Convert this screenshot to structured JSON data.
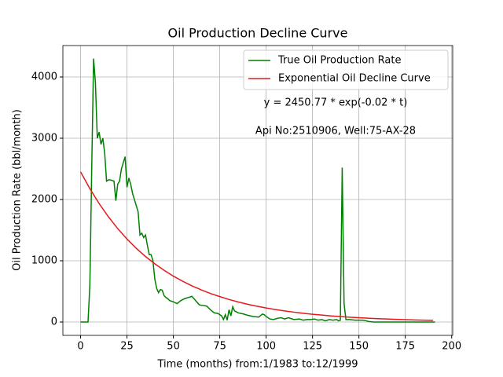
{
  "chart_data": {
    "type": "line",
    "title": "Oil Production Decline Curve",
    "x_label": "Time (months) from:1/1983 to:12/1999",
    "y_label": "Oil Production Rate (bbl/month)",
    "annotations": [
      "y = 2450.77 * exp(-0.02 * t)",
      "Api No:2510906, Well:75-AX-28"
    ],
    "xlim": [
      -9.55,
      200.55
    ],
    "xticks": [
      0,
      25,
      50,
      75,
      100,
      125,
      150,
      175,
      200
    ],
    "ylim": [
      -218,
      4513
    ],
    "yticks": [
      0,
      1000,
      2000,
      3000,
      4000
    ],
    "grid": true,
    "legend": "upper right",
    "series": [
      {
        "name": "True Oil Production Rate",
        "color": "#008000",
        "x": [
          0,
          1,
          2,
          3,
          4,
          5,
          6,
          7,
          8,
          9,
          10,
          11,
          12,
          13,
          14,
          15,
          16,
          17,
          18,
          19,
          20,
          21,
          22,
          23,
          24,
          25,
          26,
          27,
          28,
          29,
          30,
          31,
          32,
          33,
          34,
          35,
          36,
          37,
          38,
          39,
          40,
          41,
          42,
          43,
          44,
          45,
          46,
          47,
          48,
          50,
          52,
          54,
          56,
          58,
          60,
          62,
          64,
          66,
          68,
          70,
          72,
          74,
          76,
          77,
          78,
          79,
          80,
          81,
          82,
          83,
          85,
          88,
          90,
          93,
          96,
          98,
          99,
          100,
          102,
          104,
          106,
          108,
          110,
          112,
          115,
          118,
          120,
          122,
          124,
          126,
          128,
          130,
          132,
          134,
          136,
          138,
          139,
          140,
          141,
          142,
          143,
          145,
          148,
          150,
          152,
          154,
          155,
          158,
          165,
          175,
          185,
          191
        ],
        "values": [
          0,
          0,
          0,
          0,
          0,
          600,
          2500,
          4300,
          3900,
          3000,
          3100,
          2900,
          3000,
          2750,
          2300,
          2320,
          2320,
          2310,
          2300,
          1980,
          2250,
          2300,
          2500,
          2600,
          2700,
          2200,
          2350,
          2250,
          2100,
          2000,
          1900,
          1800,
          1420,
          1450,
          1380,
          1420,
          1250,
          1100,
          1100,
          1000,
          700,
          550,
          480,
          530,
          520,
          430,
          400,
          380,
          350,
          330,
          300,
          350,
          380,
          400,
          420,
          350,
          280,
          270,
          260,
          200,
          150,
          140,
          100,
          40,
          120,
          30,
          200,
          100,
          250,
          180,
          150,
          130,
          110,
          90,
          80,
          130,
          120,
          90,
          50,
          40,
          60,
          70,
          50,
          70,
          40,
          50,
          30,
          40,
          40,
          50,
          30,
          40,
          20,
          40,
          30,
          40,
          20,
          30,
          2520,
          300,
          40,
          40,
          30,
          30,
          30,
          20,
          10,
          0,
          0,
          0,
          0,
          0
        ]
      },
      {
        "name": "Exponential Oil Decline Curve",
        "color": "#e41a1c",
        "x": [
          0,
          5,
          10,
          15,
          20,
          25,
          30,
          35,
          40,
          45,
          50,
          55,
          60,
          65,
          70,
          75,
          80,
          85,
          90,
          95,
          100,
          105,
          110,
          115,
          120,
          125,
          130,
          135,
          140,
          145,
          150,
          155,
          160,
          165,
          170,
          175,
          180,
          185,
          190
        ],
        "values": [
          2450,
          2177,
          1933,
          1718,
          1525,
          1355,
          1203,
          1069,
          950,
          844,
          749,
          666,
          591,
          525,
          466,
          415,
          368,
          327,
          290,
          258,
          229,
          204,
          181,
          161,
          143,
          127,
          113,
          100,
          89,
          79,
          70,
          62,
          55,
          49,
          44,
          39,
          34,
          31,
          27
        ]
      }
    ]
  }
}
